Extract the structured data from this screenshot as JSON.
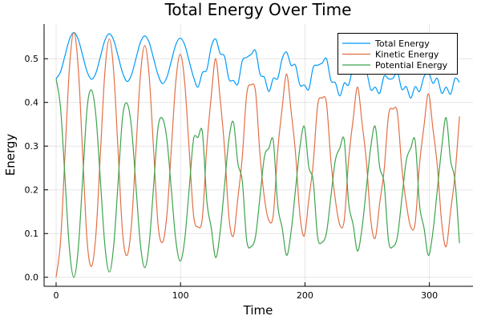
{
  "chart_data": {
    "type": "line",
    "title": "Total Energy Over Time",
    "xlabel": "Time",
    "ylabel": "Energy",
    "xlim": [
      -10,
      340
    ],
    "ylim": [
      -0.02,
      0.58
    ],
    "xticks": [
      0,
      100,
      200,
      300
    ],
    "xtick_labels": [
      "0",
      "100",
      "200",
      "300"
    ],
    "yticks": [
      0.0,
      0.1,
      0.2,
      0.3,
      0.4,
      0.5
    ],
    "ytick_labels": [
      "0.0",
      "0.1",
      "0.2",
      "0.3",
      "0.4",
      "0.5"
    ],
    "grid": true,
    "legend_position": "top-right",
    "x": [
      0,
      3.56,
      7.13,
      10.69,
      14.25,
      17.81,
      21.38,
      24.94,
      28.5,
      32.06,
      35.63,
      39.19,
      42.75,
      46.31,
      49.88,
      53.44,
      57,
      60.56,
      64.13,
      67.69,
      71.25,
      74.81,
      78.38,
      81.94,
      85.5,
      89.06,
      92.63,
      96.19,
      99.75,
      103.31,
      106.88,
      110.44,
      114,
      117.56,
      121.13,
      124.69,
      128.25,
      131.81,
      135.38,
      138.94,
      142.5,
      146.06,
      149.63,
      153.19,
      156.75,
      160.31,
      163.88,
      167.44,
      171,
      174.56,
      178.13,
      181.69,
      185.25,
      188.81,
      192.38,
      195.94,
      199.5,
      203.06,
      206.63,
      210.19,
      213.75,
      217.31,
      220.88,
      224.44,
      228,
      231.56,
      235.13,
      238.69,
      242.25,
      245.81,
      249.38,
      252.94,
      256.5,
      260.06,
      263.63,
      267.19,
      270.75,
      274.31,
      277.88,
      281.44,
      285,
      288.56,
      292.13,
      295.69,
      299.25,
      302.81,
      306.38,
      309.94,
      313.5,
      317.06,
      320.63,
      324.19
    ],
    "series": [
      {
        "name": "Total Energy",
        "color": "#009AFA",
        "values": [
          0.454,
          0.47,
          0.507,
          0.544,
          0.56,
          0.544,
          0.507,
          0.47,
          0.453,
          0.468,
          0.505,
          0.542,
          0.557,
          0.542,
          0.505,
          0.468,
          0.448,
          0.463,
          0.5,
          0.537,
          0.552,
          0.537,
          0.5,
          0.463,
          0.443,
          0.458,
          0.495,
          0.532,
          0.547,
          0.532,
          0.495,
          0.458,
          0.435,
          0.468,
          0.475,
          0.527,
          0.545,
          0.512,
          0.505,
          0.453,
          0.45,
          0.442,
          0.495,
          0.503,
          0.51,
          0.518,
          0.465,
          0.457,
          0.425,
          0.455,
          0.455,
          0.5,
          0.515,
          0.485,
          0.485,
          0.44,
          0.44,
          0.43,
          0.48,
          0.485,
          0.49,
          0.5,
          0.45,
          0.445,
          0.415,
          0.444,
          0.44,
          0.481,
          0.495,
          0.466,
          0.47,
          0.429,
          0.435,
          0.421,
          0.46,
          0.454,
          0.455,
          0.469,
          0.43,
          0.436,
          0.41,
          0.436,
          0.425,
          0.459,
          0.47,
          0.444,
          0.455,
          0.421,
          0.435,
          0.419,
          0.455,
          0.446
        ]
      },
      {
        "name": "Kinetic Energy",
        "color": "#E26F46",
        "values": [
          0.0,
          0.082,
          0.28,
          0.478,
          0.56,
          0.478,
          0.28,
          0.082,
          0.025,
          0.101,
          0.285,
          0.469,
          0.545,
          0.469,
          0.285,
          0.101,
          0.05,
          0.12,
          0.29,
          0.46,
          0.53,
          0.46,
          0.29,
          0.12,
          0.08,
          0.143,
          0.295,
          0.447,
          0.51,
          0.447,
          0.295,
          0.143,
          0.115,
          0.136,
          0.3,
          0.414,
          0.5,
          0.409,
          0.295,
          0.136,
          0.095,
          0.181,
          0.275,
          0.419,
          0.44,
          0.424,
          0.28,
          0.181,
          0.13,
          0.143,
          0.29,
          0.387,
          0.465,
          0.382,
          0.285,
          0.143,
          0.095,
          0.177,
          0.26,
          0.393,
          0.41,
          0.398,
          0.265,
          0.177,
          0.12,
          0.13,
          0.27,
          0.36,
          0.435,
          0.355,
          0.265,
          0.13,
          0.09,
          0.169,
          0.245,
          0.371,
          0.385,
          0.376,
          0.25,
          0.169,
          0.115,
          0.124,
          0.26,
          0.346,
          0.42,
          0.341,
          0.255,
          0.124,
          0.07,
          0.152,
          0.235,
          0.368
        ]
      },
      {
        "name": "Potential Energy",
        "color": "#3DA44D",
        "values": [
          0.454,
          0.388,
          0.227,
          0.066,
          0.0,
          0.066,
          0.227,
          0.388,
          0.428,
          0.367,
          0.22,
          0.073,
          0.012,
          0.073,
          0.22,
          0.367,
          0.398,
          0.343,
          0.21,
          0.077,
          0.022,
          0.077,
          0.21,
          0.343,
          0.363,
          0.315,
          0.2,
          0.085,
          0.037,
          0.085,
          0.2,
          0.315,
          0.32,
          0.332,
          0.175,
          0.113,
          0.045,
          0.103,
          0.21,
          0.317,
          0.355,
          0.261,
          0.22,
          0.084,
          0.07,
          0.094,
          0.185,
          0.276,
          0.295,
          0.312,
          0.165,
          0.113,
          0.05,
          0.103,
          0.2,
          0.297,
          0.345,
          0.253,
          0.22,
          0.092,
          0.08,
          0.102,
          0.185,
          0.268,
          0.295,
          0.314,
          0.17,
          0.121,
          0.06,
          0.111,
          0.205,
          0.299,
          0.345,
          0.252,
          0.215,
          0.083,
          0.07,
          0.093,
          0.18,
          0.267,
          0.295,
          0.312,
          0.165,
          0.113,
          0.05,
          0.103,
          0.2,
          0.297,
          0.365,
          0.267,
          0.22,
          0.078
        ]
      }
    ]
  }
}
